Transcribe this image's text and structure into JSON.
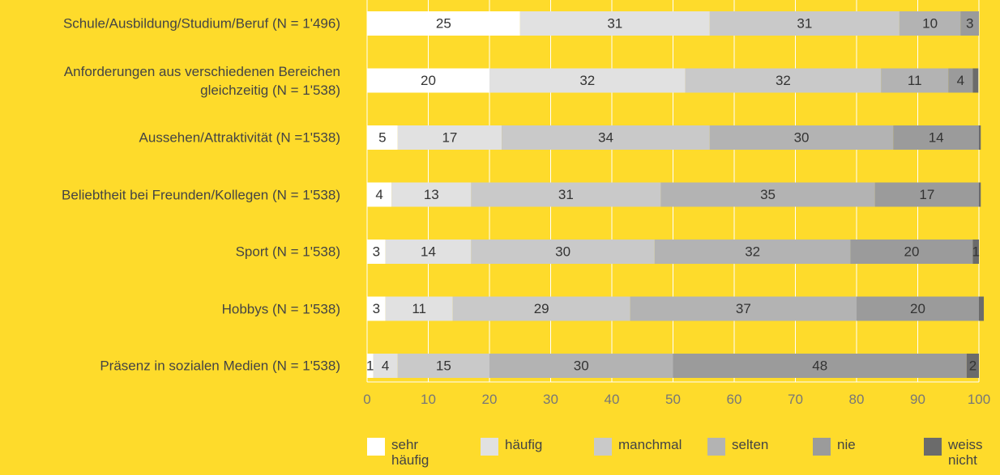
{
  "chart_data": {
    "type": "stacked-barh",
    "categories": [
      "Schule/Ausbildung/Studium/Beruf (N = 1'496)",
      "Anforderungen aus verschiedenen Bereichen gleichzeitig (N = 1'538)",
      "Aussehen/Attraktivität (N =1'538)",
      "Beliebtheit bei Freunden/Kollegen (N = 1'538)",
      "Sport (N = 1'538)",
      "Hobbys (N = 1'538)",
      "Präsenz in sozialen Medien (N = 1'538)"
    ],
    "series": [
      {
        "name": "sehr häufig",
        "color": "#ffffff",
        "values": [
          25,
          20,
          5,
          4,
          3,
          3,
          1
        ]
      },
      {
        "name": "häufig",
        "color": "#e1e1e1",
        "values": [
          31,
          32,
          17,
          13,
          14,
          11,
          4
        ]
      },
      {
        "name": "manchmal",
        "color": "#c9c9c9",
        "values": [
          31,
          32,
          34,
          31,
          30,
          29,
          15
        ]
      },
      {
        "name": "selten",
        "color": "#b3b3b3",
        "values": [
          10,
          11,
          30,
          35,
          32,
          37,
          30
        ]
      },
      {
        "name": "nie",
        "color": "#9b9b9b",
        "values": [
          3,
          4,
          14,
          17,
          20,
          20,
          48
        ]
      },
      {
        "name": "weiss nicht",
        "color": "#6b6b6b",
        "values": [
          0,
          0.9,
          0.3,
          0.3,
          1,
          0.8,
          2
        ]
      }
    ],
    "xlim": [
      0,
      100
    ],
    "xticks": [
      0,
      10,
      20,
      30,
      40,
      50,
      60,
      70,
      80,
      90,
      100
    ],
    "grid": true
  }
}
